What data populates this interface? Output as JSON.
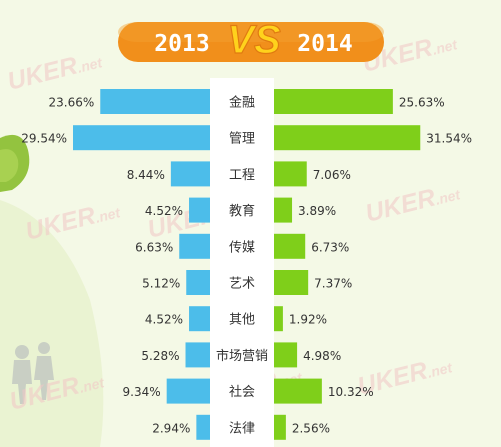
{
  "header": {
    "left_year": "2013",
    "vs_label": "VS",
    "right_year": "2014"
  },
  "watermark": {
    "text": "UKER",
    "suffix": ".net"
  },
  "colors": {
    "bar_2013": "#4cbdea",
    "bar_2014": "#7fcf1a",
    "header_bg": "#f18f1b",
    "vs_text": "#ffd21c",
    "center_strip": "#ffffff",
    "label_text": "#333333"
  },
  "chart_data": {
    "type": "bar",
    "orientation": "horizontal-diverging",
    "categories": [
      "金融",
      "管理",
      "工程",
      "教育",
      "传媒",
      "艺术",
      "其他",
      "市场营销",
      "社会",
      "法律"
    ],
    "series": [
      {
        "name": "2013",
        "values": [
          23.66,
          29.54,
          8.44,
          4.52,
          6.63,
          5.12,
          4.52,
          5.28,
          9.34,
          2.94
        ],
        "labels": [
          "23.66%",
          "29.54%",
          "8.44%",
          "4.52%",
          "6.63%",
          "5.12%",
          "4.52%",
          "5.28%",
          "9.34%",
          "2.94%"
        ]
      },
      {
        "name": "2014",
        "values": [
          25.63,
          31.54,
          7.06,
          3.89,
          6.73,
          7.37,
          1.92,
          4.98,
          10.32,
          2.56
        ],
        "labels": [
          "25.63%",
          "31.54%",
          "7.06%",
          "3.89%",
          "6.73%",
          "7.37%",
          "1.92%",
          "4.98%",
          "10.32%",
          "2.56%"
        ]
      }
    ],
    "xlim": [
      0,
      32
    ],
    "grid": false,
    "legend": "top"
  }
}
